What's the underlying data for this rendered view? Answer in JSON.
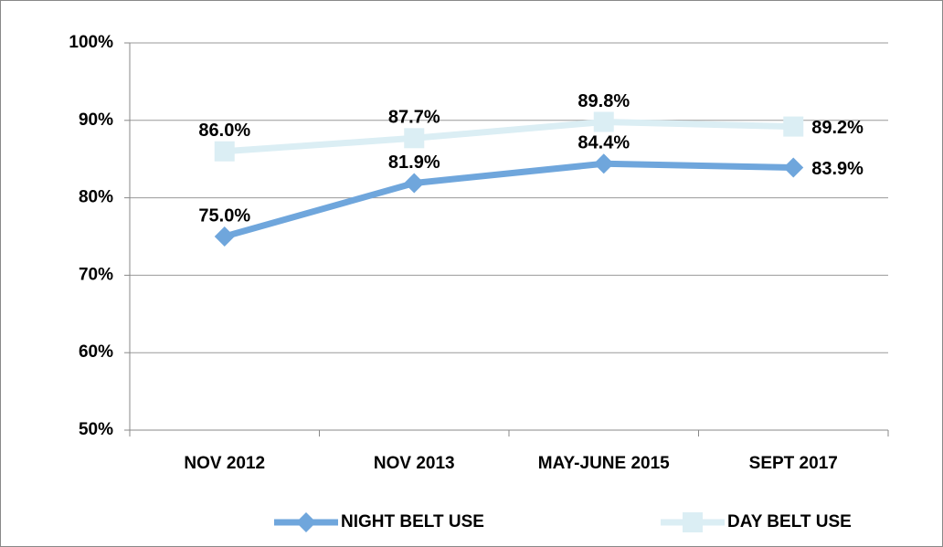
{
  "chart_data": {
    "type": "line",
    "categories": [
      "NOV 2012",
      "NOV 2013",
      "MAY-JUNE 2015",
      "SEPT 2017"
    ],
    "series": [
      {
        "name": "NIGHT BELT USE",
        "color": "#6fa6dc",
        "marker": "diamond",
        "values": [
          75.0,
          81.9,
          84.4,
          83.9
        ],
        "value_labels": [
          "75.0%",
          "81.9%",
          "84.4%",
          "83.9%"
        ]
      },
      {
        "name": "DAY BELT USE",
        "color": "#dbeef4",
        "marker": "square",
        "values": [
          86.0,
          87.7,
          89.8,
          89.2
        ],
        "value_labels": [
          "86.0%",
          "87.7%",
          "89.8%",
          "89.2%"
        ]
      }
    ],
    "ylim": [
      50,
      100
    ],
    "yticks": [
      {
        "value": 50,
        "label": "50%"
      },
      {
        "value": 60,
        "label": "60%"
      },
      {
        "value": 70,
        "label": "70%"
      },
      {
        "value": 80,
        "label": "80%"
      },
      {
        "value": 90,
        "label": "90%"
      },
      {
        "value": 100,
        "label": "100%"
      }
    ],
    "grid": true,
    "legend": "bottom"
  }
}
